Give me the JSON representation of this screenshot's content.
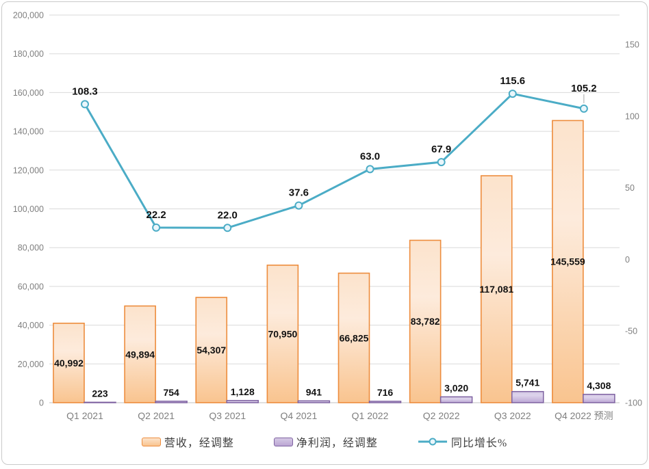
{
  "chart_data": {
    "type": "combo",
    "categories": [
      "Q1 2021",
      "Q2 2021",
      "Q3 2021",
      "Q4 2021",
      "Q1 2022",
      "Q2 2022",
      "Q3 2022",
      "Q4 2022 预测"
    ],
    "series": [
      {
        "name": "营收，经调整",
        "chart_type": "bar",
        "axis": "left",
        "values": [
          40992,
          49894,
          54307,
          70950,
          66825,
          83782,
          117081,
          145559
        ],
        "labels": [
          "40,992",
          "49,894",
          "54,307",
          "70,950",
          "66,825",
          "83,782",
          "117,081",
          "145,559"
        ],
        "border_color": "#ED8C3C",
        "fill_top": "#FCE3CC",
        "fill_mid": "#FDEBDC",
        "fill_bottom": "#F9C48F"
      },
      {
        "name": "净利润，经调整",
        "chart_type": "bar",
        "axis": "left",
        "values": [
          223,
          754,
          1128,
          941,
          716,
          3020,
          5741,
          4308
        ],
        "labels": [
          "223",
          "754",
          "1,128",
          "941",
          "716",
          "3,020",
          "5,741",
          "4,308"
        ],
        "border_color": "#7E62A1",
        "fill_top": "#D5C9E5",
        "fill_mid": "#DDD3EB",
        "fill_bottom": "#BBA6D4"
      },
      {
        "name": "同比增长%",
        "chart_type": "line",
        "axis": "right",
        "values": [
          108.3,
          22.2,
          22.0,
          37.6,
          63.0,
          67.9,
          115.6,
          105.2
        ],
        "labels": [
          "108.3",
          "22.2",
          "22.0",
          "37.6",
          "63.0",
          "67.9",
          "115.6",
          "105.2"
        ],
        "line_color": "#4BACC6",
        "marker_fill": "#EAF6FB"
      }
    ],
    "left_axis": {
      "min": 0,
      "max": 200000,
      "step": 20000,
      "ticks": [
        {
          "v": 0,
          "label": "0"
        },
        {
          "v": 20000,
          "label": "20,000"
        },
        {
          "v": 40000,
          "label": "40,000"
        },
        {
          "v": 60000,
          "label": "60,000"
        },
        {
          "v": 80000,
          "label": "80,000"
        },
        {
          "v": 100000,
          "label": "100,000"
        },
        {
          "v": 120000,
          "label": "120,000"
        },
        {
          "v": 140000,
          "label": "140,000"
        },
        {
          "v": 160000,
          "label": "160,000"
        },
        {
          "v": 180000,
          "label": "180,000"
        },
        {
          "v": 200000,
          "label": "200,000"
        }
      ]
    },
    "right_axis": {
      "ticks": [
        {
          "v": 150,
          "label": "150"
        },
        {
          "v": 100,
          "label": "100"
        },
        {
          "v": 50,
          "label": "50"
        },
        {
          "v": 0,
          "label": "0"
        },
        {
          "v": -50,
          "label": "-50"
        },
        {
          "v": -100,
          "label": "-100"
        }
      ]
    },
    "grid": true,
    "legend_position": "bottom"
  },
  "colors": {
    "gridline": "#D9D9D9",
    "zero_line": "#C0C0C0",
    "axis_text": "#7F7F7F",
    "frame_border": "#C9C9C9",
    "leader_line": "#A6A6A6"
  }
}
